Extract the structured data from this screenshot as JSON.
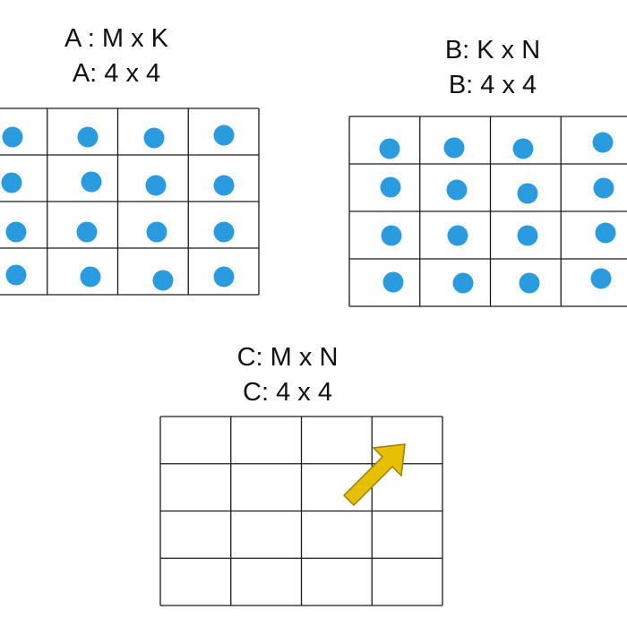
{
  "matrix_a": {
    "title": "A : M x K",
    "dims": "A: 4 x 4",
    "rows": 4,
    "cols": 4,
    "filled": true
  },
  "matrix_b": {
    "title": "B: K x N",
    "dims": "B: 4 x 4",
    "rows": 4,
    "cols": 4,
    "filled": true
  },
  "matrix_c": {
    "title": "C: M x N",
    "dims": "C: 4 x 4",
    "rows": 4,
    "cols": 4,
    "filled": false
  },
  "colors": {
    "dot": "#2b9be0",
    "grid_line": "#1a1a1a",
    "arrow_fill": "#e6bf00",
    "arrow_stroke": "#9b7f00",
    "text": "#111111"
  },
  "arrow": {
    "icon": "diagonal-arrow-up-right"
  }
}
